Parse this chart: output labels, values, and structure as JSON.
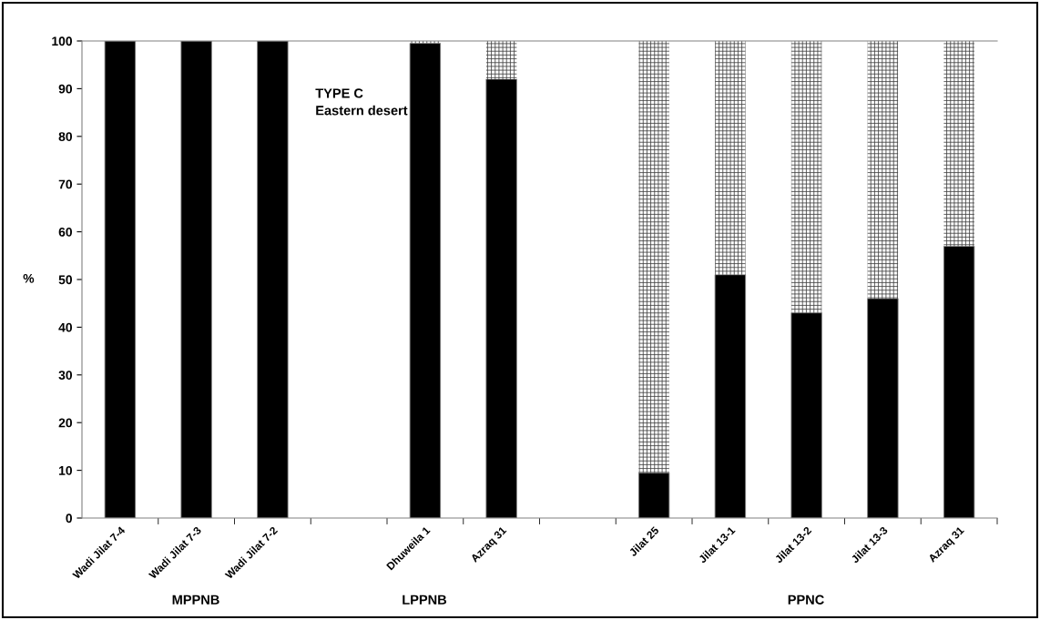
{
  "chart_data": {
    "type": "bar",
    "stacked": true,
    "ylabel": "%",
    "categories": [
      "Wadi Jilat 7-4",
      "Wadi Jilat 7-3",
      "Wadi Jilat 7-2",
      null,
      "Dhuweila 1",
      "Azraq 31",
      null,
      "Jilat 25",
      "Jilat 13-1",
      "Jilat 13-2",
      "Jilat 13-3",
      "Azraq 31"
    ],
    "series": [
      {
        "color": "#000000",
        "values": [
          100,
          100,
          100,
          null,
          99.5,
          92,
          null,
          9.5,
          51,
          43,
          46,
          57
        ]
      },
      {
        "color": "#ffffff",
        "values": [
          0,
          0,
          0,
          null,
          0.5,
          8,
          null,
          90.5,
          49,
          57,
          54,
          43
        ]
      }
    ],
    "ylim": [
      0,
      100
    ],
    "yticks": [
      0,
      10,
      20,
      30,
      40,
      50,
      60,
      70,
      80,
      90,
      100
    ],
    "annotations": [
      "TYPE C\nEastern desert",
      "MPPNB",
      "LPPNB",
      "PPNC"
    ]
  }
}
